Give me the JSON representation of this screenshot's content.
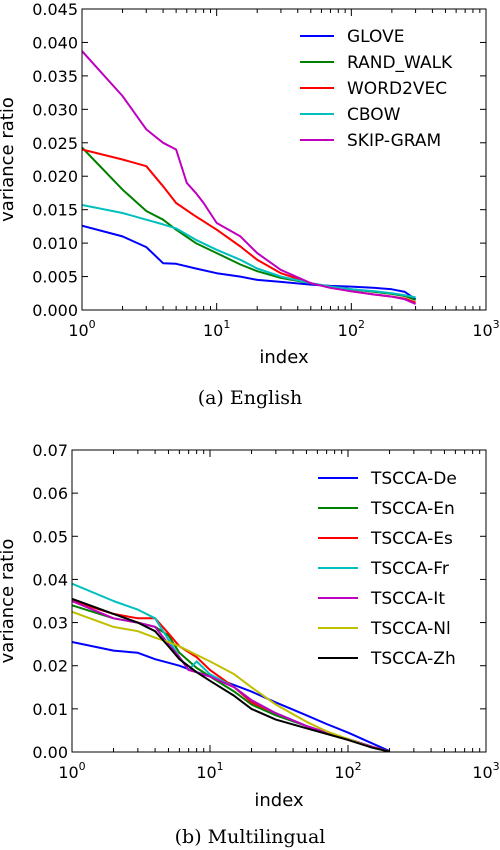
{
  "chart_data": [
    {
      "type": "line",
      "caption": "(a)  English",
      "xlabel": "index",
      "ylabel": "variance ratio",
      "xscale": "log",
      "xlim": [
        1,
        1000
      ],
      "ylim": [
        0,
        0.045
      ],
      "x_ticks": [
        1,
        10,
        100,
        1000
      ],
      "x_tick_base": "10",
      "x_tick_exponents": [
        "0",
        "1",
        "2",
        "3"
      ],
      "y_ticks": [
        "0.000",
        "0.005",
        "0.010",
        "0.015",
        "0.020",
        "0.025",
        "0.030",
        "0.035",
        "0.040",
        "0.045"
      ],
      "y_tick_values": [
        0,
        0.005,
        0.01,
        0.015,
        0.02,
        0.025,
        0.03,
        0.035,
        0.04,
        0.045
      ],
      "grid": false,
      "legend_position": "top-right",
      "series": [
        {
          "name": "GLOVE",
          "color": "#0000ff",
          "x": [
            1,
            2,
            3,
            4,
            5,
            7,
            10,
            15,
            20,
            30,
            50,
            70,
            100,
            150,
            200,
            250,
            300
          ],
          "y": [
            0.0126,
            0.011,
            0.0094,
            0.007,
            0.0069,
            0.0062,
            0.0055,
            0.005,
            0.0045,
            0.0042,
            0.0038,
            0.0036,
            0.0035,
            0.0033,
            0.0031,
            0.0027,
            0.0016
          ]
        },
        {
          "name": "RAND_WALK",
          "color": "#008000",
          "x": [
            1,
            2,
            3,
            4,
            5,
            7,
            10,
            15,
            20,
            30,
            50,
            70,
            100,
            150,
            200,
            250,
            300
          ],
          "y": [
            0.0243,
            0.018,
            0.0148,
            0.0135,
            0.012,
            0.01,
            0.0085,
            0.0068,
            0.0058,
            0.0048,
            0.004,
            0.0035,
            0.0031,
            0.0027,
            0.0024,
            0.0021,
            0.0015
          ]
        },
        {
          "name": "WORD2VEC",
          "color": "#ff0000",
          "x": [
            1,
            2,
            3,
            4,
            5,
            7,
            10,
            15,
            20,
            30,
            50,
            70,
            100,
            150,
            200,
            250,
            300
          ],
          "y": [
            0.024,
            0.0225,
            0.0215,
            0.0185,
            0.016,
            0.014,
            0.012,
            0.0095,
            0.0075,
            0.0055,
            0.004,
            0.0034,
            0.0028,
            0.0023,
            0.002,
            0.0017,
            0.0011
          ]
        },
        {
          "name": "CBOW",
          "color": "#00bfbf",
          "x": [
            1,
            2,
            3,
            4,
            5,
            7,
            10,
            15,
            20,
            30,
            50,
            70,
            100,
            150,
            200,
            250,
            300
          ],
          "y": [
            0.0157,
            0.0145,
            0.0135,
            0.0128,
            0.0122,
            0.0105,
            0.009,
            0.0075,
            0.0062,
            0.005,
            0.004,
            0.0035,
            0.0031,
            0.0028,
            0.0025,
            0.0022,
            0.0019
          ]
        },
        {
          "name": "SKIP-GRAM",
          "color": "#bf00bf",
          "x": [
            1,
            2,
            3,
            4,
            5,
            6,
            7,
            8,
            10,
            15,
            20,
            30,
            50,
            70,
            100,
            150,
            200,
            250,
            300
          ],
          "y": [
            0.0387,
            0.032,
            0.027,
            0.025,
            0.024,
            0.019,
            0.0175,
            0.016,
            0.013,
            0.011,
            0.0085,
            0.006,
            0.004,
            0.0033,
            0.0028,
            0.0023,
            0.002,
            0.0016,
            0.0009
          ]
        }
      ]
    },
    {
      "type": "line",
      "caption": "(b)  Multilingual",
      "xlabel": "index",
      "ylabel": "variance ratio",
      "xscale": "log",
      "xlim": [
        1,
        1000
      ],
      "ylim": [
        0,
        0.07
      ],
      "x_ticks": [
        1,
        10,
        100,
        1000
      ],
      "x_tick_base": "10",
      "x_tick_exponents": [
        "0",
        "1",
        "2",
        "3"
      ],
      "y_ticks": [
        "0.00",
        "0.01",
        "0.02",
        "0.03",
        "0.04",
        "0.05",
        "0.06",
        "0.07"
      ],
      "y_tick_values": [
        0,
        0.01,
        0.02,
        0.03,
        0.04,
        0.05,
        0.06,
        0.07
      ],
      "grid": false,
      "legend_position": "top-right",
      "series": [
        {
          "name": "TSCCA-De",
          "color": "#0000ff",
          "x": [
            1,
            2,
            3,
            4,
            6,
            8,
            10,
            15,
            20,
            30,
            50,
            70,
            100,
            150,
            200
          ],
          "y": [
            0.0255,
            0.0235,
            0.023,
            0.0215,
            0.02,
            0.0185,
            0.0175,
            0.0155,
            0.014,
            0.0115,
            0.0085,
            0.0065,
            0.0045,
            0.002,
            0.0002
          ]
        },
        {
          "name": "TSCCA-En",
          "color": "#008000",
          "x": [
            1,
            2,
            3,
            4,
            5,
            6,
            8,
            10,
            15,
            20,
            30,
            50,
            70,
            100,
            150,
            200
          ],
          "y": [
            0.034,
            0.031,
            0.03,
            0.029,
            0.027,
            0.023,
            0.0195,
            0.0175,
            0.014,
            0.011,
            0.0085,
            0.006,
            0.0045,
            0.003,
            0.0012,
            0.0001
          ]
        },
        {
          "name": "TSCCA-Es",
          "color": "#ff0000",
          "x": [
            1,
            2,
            3,
            4,
            5,
            6,
            8,
            10,
            15,
            20,
            30,
            50,
            70,
            100,
            150,
            200
          ],
          "y": [
            0.035,
            0.032,
            0.031,
            0.031,
            0.0275,
            0.0245,
            0.022,
            0.019,
            0.015,
            0.0115,
            0.009,
            0.006,
            0.0045,
            0.003,
            0.0012,
            0.0001
          ]
        },
        {
          "name": "TSCCA-Fr",
          "color": "#00bfbf",
          "x": [
            1,
            2,
            3,
            4,
            5,
            6,
            7,
            8,
            10,
            15,
            20,
            30,
            50,
            70,
            100,
            150,
            200
          ],
          "y": [
            0.039,
            0.035,
            0.033,
            0.031,
            0.026,
            0.022,
            0.019,
            0.021,
            0.018,
            0.015,
            0.012,
            0.009,
            0.006,
            0.0045,
            0.003,
            0.0012,
            0.0001
          ]
        },
        {
          "name": "TSCCA-It",
          "color": "#bf00bf",
          "x": [
            1,
            2,
            3,
            4,
            5,
            6,
            7,
            8,
            10,
            15,
            20,
            30,
            50,
            70,
            100,
            150,
            200
          ],
          "y": [
            0.035,
            0.031,
            0.03,
            0.029,
            0.025,
            0.022,
            0.019,
            0.0185,
            0.0175,
            0.015,
            0.012,
            0.009,
            0.006,
            0.0045,
            0.003,
            0.0012,
            0.0001
          ]
        },
        {
          "name": "TSCCA-Nl",
          "color": "#bfbf00",
          "x": [
            1,
            2,
            3,
            4,
            5,
            6,
            8,
            10,
            15,
            20,
            30,
            50,
            70,
            100,
            150,
            200
          ],
          "y": [
            0.0325,
            0.029,
            0.028,
            0.0265,
            0.0255,
            0.0245,
            0.0225,
            0.021,
            0.018,
            0.015,
            0.011,
            0.007,
            0.0048,
            0.003,
            0.001,
            0.0001
          ]
        },
        {
          "name": "TSCCA-Zh",
          "color": "#000000",
          "x": [
            1,
            2,
            3,
            4,
            5,
            6,
            8,
            10,
            15,
            20,
            30,
            50,
            70,
            100,
            150,
            200
          ],
          "y": [
            0.0355,
            0.032,
            0.03,
            0.028,
            0.0245,
            0.0215,
            0.0185,
            0.0165,
            0.013,
            0.01,
            0.0075,
            0.0055,
            0.0042,
            0.0028,
            0.001,
            0.0001
          ]
        }
      ]
    }
  ]
}
